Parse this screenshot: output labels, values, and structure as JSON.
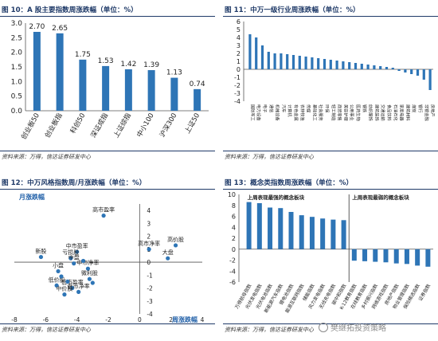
{
  "panels": {
    "p10": {
      "title": "图 10：A 股主要指数周涨跌幅（单位：%）",
      "source": "资料来源：万得，信达证券研发中心"
    },
    "p11": {
      "title": "图 11：中万一级行业周涨跌幅（单位：%）",
      "source": "资料来源：万得，信达证券研发中心"
    },
    "p12": {
      "title": "图 12：中万风格指数周/月涨跌幅（单位：%）",
      "source": "资料来源：万得，信达证券研发中心"
    },
    "p13": {
      "title": "图 13：概念类指数周涨跌幅（单位：%）",
      "source": "资料来源：万得，信达证券研发中心"
    }
  },
  "watermark": "樊继拓投资策略",
  "chart_data": [
    {
      "type": "bar",
      "categories": [
        "创业板50",
        "创业板指",
        "科创50",
        "深证成指",
        "上证综指",
        "中小100",
        "沪深300",
        "上证50"
      ],
      "values": [
        2.7,
        2.65,
        1.75,
        1.53,
        1.42,
        1.39,
        1.13,
        0.74
      ],
      "value_labels": [
        "2.70",
        "2.65",
        "1.75",
        "1.53",
        "1.42",
        "1.39",
        "1.13",
        "0.74"
      ],
      "yticks": [
        "0.0",
        "0.5",
        "1.0",
        "1.5",
        "2.0",
        "2.5",
        "3.0"
      ],
      "ylim": [
        0,
        3.0
      ],
      "color": "#2e75b6"
    },
    {
      "type": "bar",
      "categories": [
        "国防军工",
        "电力设备",
        "电子",
        "通信",
        "机械设备",
        "汽车",
        "计算机",
        "有色金属",
        "农林牧渔",
        "传媒",
        "基础化工",
        "社会服务",
        "环保",
        "轻工制造",
        "商贸零售",
        "美容护理",
        "公用事业",
        "医药生物",
        "钢铁",
        "纺织服饰",
        "建筑装饰",
        "交通运输",
        "食品饮料",
        "石油石化",
        "家用电器",
        "建筑材料",
        "煤炭",
        "银行",
        "非银金融",
        "房地产"
      ],
      "values": [
        4.4,
        4.0,
        3.0,
        2.2,
        2.0,
        2.0,
        1.9,
        1.8,
        1.7,
        1.6,
        1.5,
        1.4,
        1.3,
        1.2,
        1.1,
        1.0,
        0.9,
        0.8,
        0.7,
        0.6,
        0.5,
        0.4,
        0.3,
        0.2,
        -0.2,
        -0.4,
        -0.6,
        -0.8,
        -1.3,
        -2.6
      ],
      "yticks": [
        "-4",
        "-3",
        "-2",
        "-1",
        "0",
        "1",
        "2",
        "3",
        "4",
        "5",
        "6"
      ],
      "ylim": [
        -4,
        6
      ],
      "color": "#2e75b6"
    },
    {
      "type": "scatter",
      "xlabel": "周涨跌幅",
      "ylabel": "月涨跌幅",
      "xticks": [
        "-8",
        "-6",
        "-4",
        "-2",
        "0",
        "2",
        "4"
      ],
      "yticks": [
        "-4",
        "-3",
        "-2",
        "-1",
        "0",
        "1",
        "2",
        "3",
        "4"
      ],
      "xlim": [
        -8,
        4
      ],
      "ylim": [
        -4,
        4.5
      ],
      "color": "#2e75b6",
      "points": [
        {
          "label": "高市盈率",
          "x": -2.3,
          "y": 3.6
        },
        {
          "label": "新股",
          "x": -6.3,
          "y": 0.4
        },
        {
          "label": "高价股",
          "x": 2.3,
          "y": 1.3
        },
        {
          "label": "高市净率",
          "x": 0.6,
          "y": 1.0
        },
        {
          "label": "大盘",
          "x": 1.8,
          "y": 0.3
        },
        {
          "label": "中市盈率",
          "x": -4.0,
          "y": 0.8
        },
        {
          "label": "亏损股",
          "x": -4.4,
          "y": 0.3
        },
        {
          "label": "中盘",
          "x": -4.2,
          "y": -0.1
        },
        {
          "label": "中市净率",
          "x": -3.3,
          "y": -0.5
        },
        {
          "label": "小盘",
          "x": -5.2,
          "y": -0.7
        },
        {
          "label": "微利股",
          "x": -3.2,
          "y": -1.3
        },
        {
          "label": "低价股",
          "x": -5.3,
          "y": -1.8
        },
        {
          "label": "低市盈率",
          "x": -4.3,
          "y": -2.0
        },
        {
          "label": "低市净率",
          "x": -3.9,
          "y": -2.3
        },
        {
          "label": "中价股",
          "x": -4.8,
          "y": -2.5
        },
        {
          "label": "",
          "x": -3.6,
          "y": 0.1
        },
        {
          "label": "",
          "x": -3.0,
          "y": -1.6
        },
        {
          "label": "",
          "x": -5.0,
          "y": -1.1
        },
        {
          "label": "",
          "x": -4.6,
          "y": -1.5
        }
      ]
    },
    {
      "type": "bar",
      "groups": [
        "上周表现最强的概念板块",
        "上周表现最弱的概念板块"
      ],
      "categories": [
        "万得航母指数",
        "光伏发电指数",
        "光伏电池指数",
        "新能源汽车指数",
        "锂电池指数",
        "能源互联网指数",
        "储能指数",
        "风力发电指数",
        "无线充电指数",
        "碳中和指数",
        "K-12教育指数",
        "在线教育指数",
        "乡村振兴指数",
        "网络游戏指数",
        "房地产指数",
        "物业管理指数",
        "保险精选指数",
        "证券指数"
      ],
      "values": [
        8.6,
        8.4,
        7.6,
        7.5,
        6.8,
        6.2,
        5.9,
        5.6,
        5.4,
        5.3,
        -2.1,
        -2.2,
        -2.3,
        -2.4,
        -2.6,
        -2.7,
        -3.0,
        -3.2
      ],
      "split_index": 10,
      "yticks": [
        "-6",
        "-4",
        "-2",
        "0",
        "2",
        "4",
        "6",
        "8",
        "10"
      ],
      "ylim": [
        -6,
        10
      ],
      "color": "#2e75b6"
    }
  ]
}
